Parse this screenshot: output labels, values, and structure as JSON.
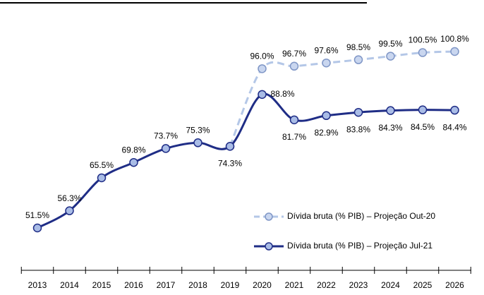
{
  "chart_data": {
    "type": "line",
    "categories": [
      "2013",
      "2014",
      "2015",
      "2016",
      "2017",
      "2018",
      "2019",
      "2020",
      "2021",
      "2022",
      "2023",
      "2024",
      "2025",
      "2026"
    ],
    "series": [
      {
        "name": "Dívida bruta (% PIB) – Projeção Out-20",
        "color": "#b4c7e7",
        "dashed": true,
        "values": [
          null,
          null,
          null,
          null,
          null,
          null,
          74.3,
          96.0,
          96.7,
          97.6,
          98.5,
          99.5,
          100.5,
          100.8
        ],
        "value_labels": [
          null,
          null,
          null,
          null,
          null,
          null,
          null,
          "96.0%",
          "96.7%",
          "97.6%",
          "98.5%",
          "99.5%",
          "100.5%",
          "100.8%"
        ]
      },
      {
        "name": "Dívida bruta (% PIB) – Projeção Jul-21",
        "color": "#1f2d86",
        "dashed": false,
        "values": [
          51.5,
          56.3,
          65.5,
          69.8,
          73.7,
          75.3,
          74.3,
          88.8,
          81.7,
          82.9,
          83.8,
          84.3,
          84.5,
          84.4
        ],
        "value_labels": [
          "51.5%",
          "56.3%",
          "65.5%",
          "69.8%",
          "73.7%",
          "75.3%",
          "74.3%",
          "88.8%",
          "81.7%",
          "82.9%",
          "83.8%",
          "84.3%",
          "84.5%",
          "84.4%"
        ]
      }
    ],
    "legend": "lower right"
  }
}
